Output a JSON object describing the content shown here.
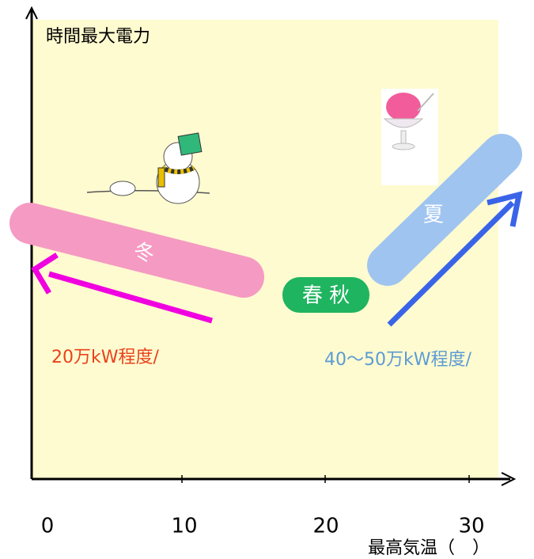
{
  "axis": {
    "y_label": "時間最大電力",
    "x_label": "最高気温（　）",
    "x_ticks": [
      "0",
      "10",
      "20",
      "30"
    ]
  },
  "seasons": {
    "winter": "冬",
    "spring_autumn": "春 秋",
    "summer": "夏"
  },
  "annotations": {
    "winter": "20万kW程度/",
    "summer": "40～50万kW程度/"
  }
}
